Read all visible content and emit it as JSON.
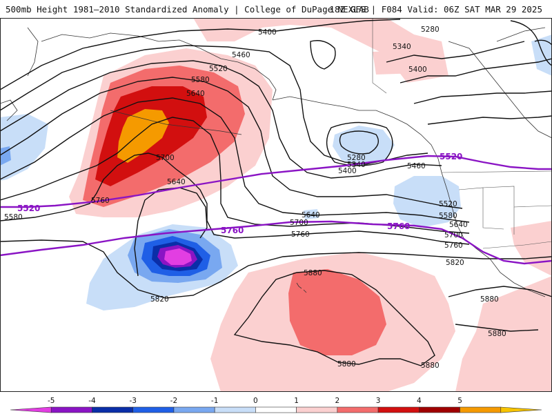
{
  "header": {
    "title_left": "500mb Height 1981–2010 Standardized Anomaly | College of DuPage NEXLAB",
    "title_right": "18Z GFS | F084 Valid: 06Z SAT MAR 29 2025"
  },
  "height_labels": {
    "l5400a": "5400",
    "l5460a": "5460",
    "l5520a": "5520",
    "l5580a": "5580",
    "l5640a": "5640",
    "l5700a": "5700",
    "l5640b": "5640",
    "l5760a": "5760",
    "l5580b": "5580",
    "l5820a": "5820",
    "l5280a": "5280",
    "l5340a": "5340",
    "l5400b": "5400",
    "l5280b": "5280",
    "l5340b": "5340",
    "l5400c": "5400",
    "l5460b": "5460",
    "l5520b": "5520",
    "l5580c": "5580",
    "l5640c": "5640",
    "l5700b": "5700",
    "l5760b": "5760",
    "l5820b": "5820",
    "l5640d": "5640",
    "l5700c": "5700",
    "l5760c": "5760",
    "l5880a": "5880",
    "l5880b": "5880",
    "l5880c": "5880",
    "l5880d": "5880",
    "l5880e": "5880"
  },
  "highlight_labels": {
    "p5520a": "5520",
    "p5760a": "5760",
    "p5760b": "5760",
    "p5520b": "5520"
  },
  "colorbar": {
    "ticks": [
      "-5",
      "-4",
      "-3",
      "-2",
      "-1",
      "0",
      "1",
      "2",
      "3",
      "4",
      "5"
    ],
    "colors": [
      "#e23ee2",
      "#8a14c4",
      "#0a2ea8",
      "#1f5fe6",
      "#79a8f0",
      "#c8def8",
      "#ffffff",
      "#fbd0d0",
      "#f36c6c",
      "#d20f0f",
      "#a00000",
      "#f59a00",
      "#f7c400"
    ]
  },
  "colors": {
    "contour": "#111111",
    "highlight_contour": "#8a14c4",
    "land": "#ffffff"
  }
}
